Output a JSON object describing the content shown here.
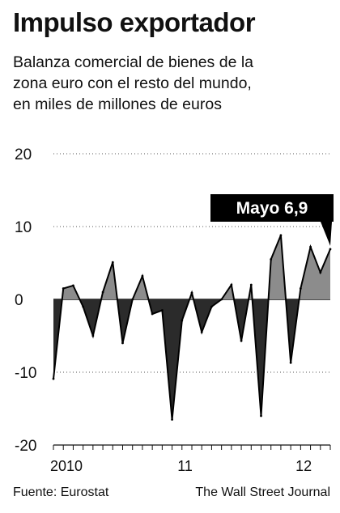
{
  "header": {
    "title": "Impulso exportador",
    "subtitle_lines": [
      "Balanza comercial de bienes de la",
      "zona euro con el resto del mundo,",
      "en miles de millones de euros"
    ]
  },
  "footer": {
    "source": "Fuente: Eurostat",
    "publisher": "The Wall Street Journal"
  },
  "colors": {
    "positive_fill": "#8c8c8c",
    "negative_fill": "#2b2b2b",
    "line": "#000000",
    "callout_bg": "#000000",
    "callout_text": "#ffffff",
    "grid": "#555555"
  },
  "chart_data": {
    "type": "area",
    "title": "Impulso exportador",
    "subtitle": "Balanza comercial de bienes de la zona euro con el resto del mundo, en miles de millones de euros",
    "xlabel": "",
    "ylabel": "",
    "ylim": [
      -20,
      20
    ],
    "yticks": [
      20,
      10,
      0,
      -10,
      -20
    ],
    "ytick_labels": [
      "20",
      "10",
      "0",
      "-10",
      "-20"
    ],
    "x_start": "2010-01",
    "x_end": "2012-05",
    "x_labels": [
      {
        "label": "2010",
        "at": "2010-01"
      },
      {
        "label": "11",
        "at": "2011-01"
      },
      {
        "label": "12",
        "at": "2012-01"
      }
    ],
    "grid": true,
    "grid_style": "dotted",
    "annotation": {
      "text": "Mayo 6,9",
      "at": "2012-05",
      "value": 6.9
    },
    "series": [
      {
        "x": [
          "2010-01",
          "2010-02",
          "2010-03",
          "2010-04",
          "2010-05",
          "2010-06",
          "2010-07",
          "2010-08",
          "2010-09",
          "2010-10",
          "2010-11",
          "2010-12",
          "2011-01",
          "2011-02",
          "2011-03",
          "2011-04",
          "2011-05",
          "2011-06",
          "2011-07",
          "2011-08",
          "2011-09",
          "2011-10",
          "2011-11",
          "2011-12",
          "2012-01",
          "2012-02",
          "2012-03",
          "2012-04",
          "2012-05"
        ],
        "values": [
          -10.9,
          1.5,
          1.9,
          -1.0,
          -5.0,
          1.0,
          5.1,
          -6.0,
          0.0,
          3.2,
          -2.0,
          -1.5,
          -16.5,
          -2.9,
          0.9,
          -4.5,
          -1.0,
          0.0,
          2.0,
          -5.7,
          2.0,
          -16.0,
          5.5,
          8.8,
          -8.7,
          1.5,
          7.2,
          3.7,
          6.9
        ]
      }
    ]
  }
}
